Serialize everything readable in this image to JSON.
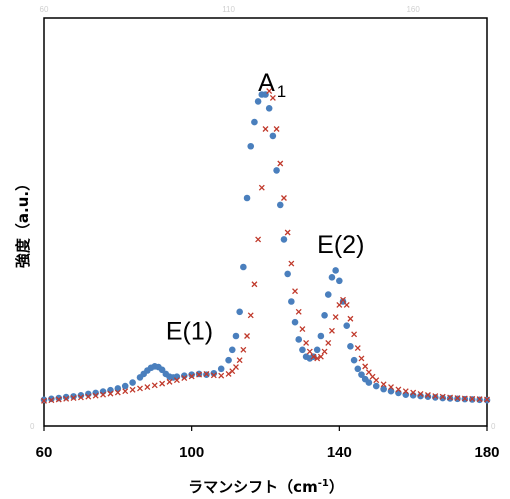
{
  "chart_data": {
    "type": "scatter",
    "title": "",
    "xlabel": "ラマンシフト（cm",
    "xlabel_sup": "-1",
    "xlabel_close": "）",
    "ylabel": "強度（a.u.）",
    "xlim": [
      60,
      180
    ],
    "ylim": [
      0,
      100
    ],
    "x_ticks": [
      "60",
      "100",
      "140",
      "180"
    ],
    "x_tick_values": [
      60,
      100,
      140,
      180
    ],
    "top_ticks": [
      "60",
      "110",
      "160"
    ],
    "top_tick_values": [
      60,
      110,
      160
    ],
    "left_tick": "0",
    "right_tick": "0",
    "grid": false,
    "legend": "none",
    "annotations": [
      {
        "text": "A",
        "sub": "1",
        "x": 118,
        "y": 91
      },
      {
        "text": "E(2)",
        "x": 134,
        "y": 44
      },
      {
        "text": "E(1)",
        "x": 93,
        "y": 19
      }
    ],
    "series": [
      {
        "marker": "circle",
        "color": "#4a7fbd",
        "x": [
          60,
          62,
          64,
          66,
          68,
          70,
          72,
          74,
          76,
          78,
          80,
          82,
          84,
          86,
          87,
          88,
          89,
          90,
          91,
          92,
          93,
          94,
          95,
          96,
          98,
          100,
          102,
          104,
          106,
          108,
          110,
          111,
          112,
          113,
          114,
          115,
          116,
          117,
          118,
          119,
          120,
          121,
          122,
          123,
          124,
          125,
          126,
          127,
          128,
          129,
          130,
          131,
          132,
          133,
          134,
          135,
          136,
          137,
          138,
          139,
          140,
          141,
          142,
          143,
          144,
          145,
          146,
          147,
          148,
          150,
          152,
          154,
          156,
          158,
          160,
          162,
          164,
          166,
          168,
          170,
          172,
          174,
          176,
          178,
          180
        ],
        "y": [
          1.5,
          1.8,
          2.0,
          2.3,
          2.5,
          2.8,
          3.2,
          3.5,
          3.9,
          4.3,
          4.8,
          5.5,
          6.5,
          8.0,
          9.0,
          10.0,
          10.8,
          11.2,
          11.0,
          10.2,
          9.0,
          8.2,
          8.0,
          8.2,
          8.5,
          8.8,
          9.0,
          8.8,
          9.2,
          10.5,
          13.0,
          16.0,
          20.0,
          27.0,
          40.0,
          60.0,
          75.0,
          82.0,
          88.0,
          90.0,
          90.0,
          86.0,
          78.0,
          68.0,
          58.0,
          48.0,
          38.0,
          30.0,
          24.0,
          19.0,
          16.0,
          14.0,
          13.5,
          14.0,
          16.0,
          20.0,
          26.0,
          32.0,
          37.0,
          39.0,
          36.0,
          30.0,
          23.0,
          17.0,
          13.0,
          10.5,
          8.8,
          7.5,
          6.5,
          5.5,
          4.6,
          4.0,
          3.5,
          3.0,
          2.8,
          2.6,
          2.4,
          2.2,
          2.0,
          1.9,
          1.8,
          1.7,
          1.6,
          1.5,
          1.4
        ]
      },
      {
        "marker": "x",
        "color": "#c0392b",
        "x": [
          60,
          62,
          64,
          66,
          68,
          70,
          72,
          74,
          76,
          78,
          80,
          82,
          84,
          86,
          88,
          90,
          92,
          94,
          96,
          98,
          100,
          102,
          104,
          106,
          108,
          110,
          111,
          112,
          113,
          114,
          115,
          116,
          117,
          118,
          119,
          120,
          121,
          122,
          123,
          124,
          125,
          126,
          127,
          128,
          129,
          130,
          131,
          132,
          133,
          134,
          135,
          136,
          137,
          138,
          139,
          140,
          141,
          142,
          143,
          144,
          145,
          146,
          147,
          148,
          149,
          150,
          152,
          154,
          156,
          158,
          160,
          162,
          164,
          166,
          168,
          170,
          172,
          174,
          176,
          178,
          180
        ],
        "y": [
          1.2,
          1.4,
          1.6,
          1.8,
          2.0,
          2.2,
          2.4,
          2.7,
          3.0,
          3.3,
          3.6,
          4.0,
          4.4,
          4.8,
          5.2,
          5.7,
          6.2,
          6.7,
          7.2,
          7.8,
          8.3,
          8.8,
          9.0,
          8.6,
          8.5,
          9.0,
          9.8,
          11.0,
          13.0,
          16.0,
          20.0,
          26.0,
          35.0,
          48.0,
          63.0,
          80.0,
          91.0,
          89.0,
          80.0,
          70.0,
          60.0,
          50.0,
          41.0,
          33.0,
          27.0,
          22.0,
          18.0,
          15.5,
          14.0,
          13.5,
          14.0,
          15.5,
          18.0,
          21.5,
          25.5,
          29.0,
          30.5,
          29.0,
          25.0,
          20.5,
          16.5,
          13.5,
          11.2,
          9.5,
          8.2,
          7.2,
          6.0,
          5.2,
          4.5,
          4.0,
          3.6,
          3.2,
          2.9,
          2.6,
          2.4,
          2.2,
          2.0,
          1.9,
          1.8,
          1.7,
          1.6
        ]
      }
    ]
  }
}
